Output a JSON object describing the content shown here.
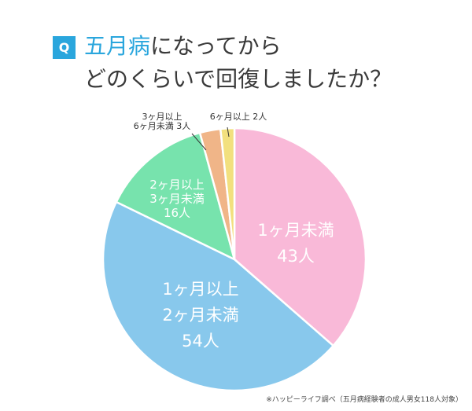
{
  "header": {
    "badge": "Q",
    "title_accent": "五月病",
    "title_rest_line1": "になってから",
    "title_line2": "どのくらいで回復しましたか？"
  },
  "colors": {
    "accent": "#2aa6dd",
    "title_text": "#3a3a3a"
  },
  "footnote": "※ハッピーライフ調べ（五月病経験者の成人男女118人対象）",
  "chart_data": {
    "type": "pie",
    "title": "五月病になってからどのくらいで回復しましたか？",
    "start": "12 o'clock",
    "direction": "clockwise",
    "slices": [
      {
        "label_lines": [
          "1ヶ月未満",
          "43人"
        ],
        "value": 43,
        "color": "#f9b9d8",
        "label_color": "#ffffff",
        "label_position": "inside"
      },
      {
        "label_lines": [
          "1ヶ月以上",
          "2ヶ月未満",
          "54人"
        ],
        "value": 54,
        "color": "#88c8ec",
        "label_color": "#ffffff",
        "label_position": "inside"
      },
      {
        "label_lines": [
          "2ヶ月以上",
          "3ヶ月未満",
          "16人"
        ],
        "value": 16,
        "color": "#77e3ad",
        "label_color": "#ffffff",
        "label_position": "inside"
      },
      {
        "label_lines": [
          "3ヶ月以上",
          "6ヶ月未満 3人"
        ],
        "value": 3,
        "color": "#f0b588",
        "label_color": "#333333",
        "label_position": "outside"
      },
      {
        "label_lines": [
          "6ヶ月以上 2人"
        ],
        "value": 2,
        "color": "#f2e07e",
        "label_color": "#333333",
        "label_position": "outside"
      }
    ],
    "total": 118
  }
}
